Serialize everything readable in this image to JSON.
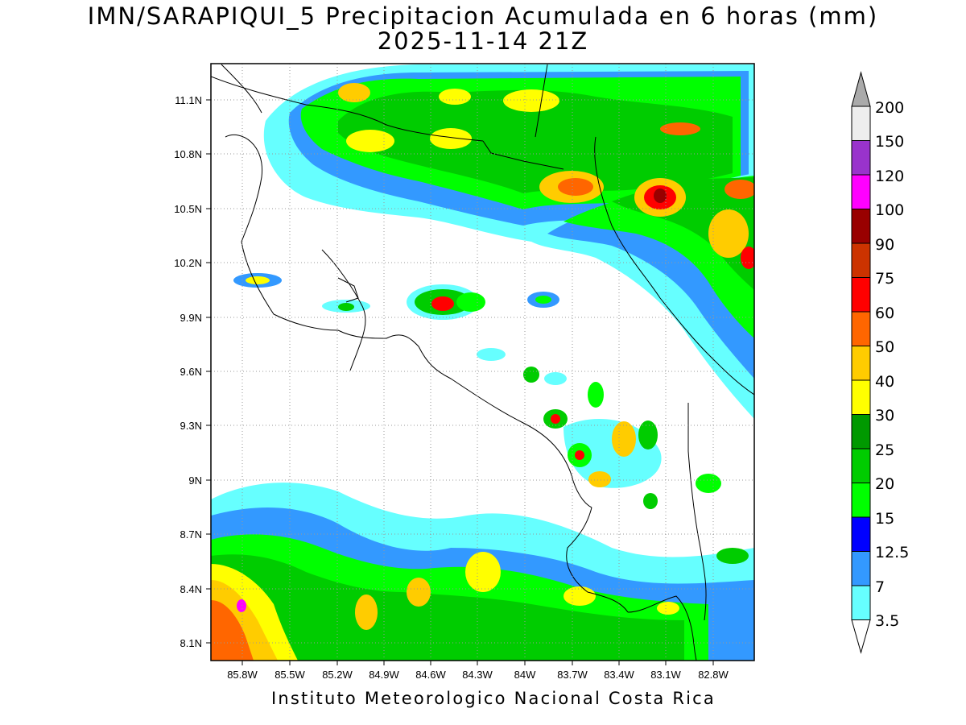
{
  "title": {
    "line1": "IMN/SARAPIQUI_5 Precipitacion Acumulada en 6 horas (mm)",
    "line2": "2025-11-14 21Z"
  },
  "footer": "Instituto Meteorologico Nacional Costa Rica",
  "map": {
    "lat_range": [
      8.0,
      11.3
    ],
    "lon_range": [
      -86.0,
      -82.6
    ],
    "lat_ticks": [
      "8.1N",
      "8.4N",
      "8.7N",
      "9N",
      "9.3N",
      "9.6N",
      "9.9N",
      "10.2N",
      "10.5N",
      "10.8N",
      "11.1N"
    ],
    "lon_ticks": [
      "85.8W",
      "85.5W",
      "85.2W",
      "84.9W",
      "84.6W",
      "84.3W",
      "84W",
      "83.7W",
      "83.4W",
      "83.1W",
      "82.8W"
    ],
    "grid": "dotted"
  },
  "colorbar": {
    "levels": [
      "3.5",
      "7",
      "12.5",
      "15",
      "20",
      "25",
      "30",
      "40",
      "50",
      "60",
      "75",
      "90",
      "100",
      "120",
      "150",
      "200"
    ],
    "colors": [
      "#ffffff",
      "#66ffff",
      "#3399ff",
      "#0000ff",
      "#00ff00",
      "#00cc00",
      "#009900",
      "#ffff00",
      "#ffcc00",
      "#ff6600",
      "#ff0000",
      "#cc3300",
      "#990000",
      "#ff00ff",
      "#9933cc",
      "#eeeeee",
      "#aaaaaa"
    ]
  }
}
